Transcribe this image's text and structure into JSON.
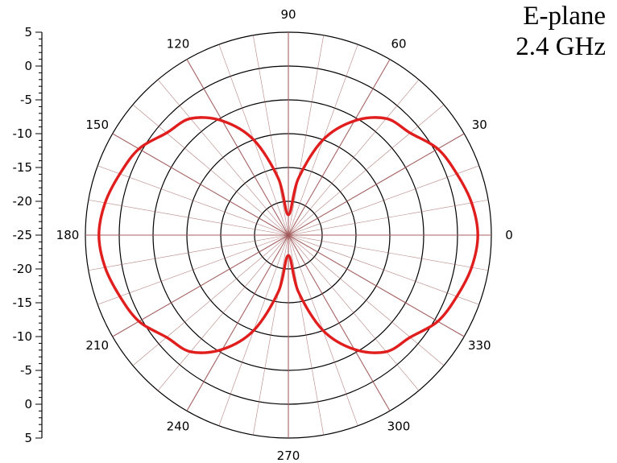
{
  "title": {
    "line1": "E-plane",
    "line2": "2.4 GHz"
  },
  "colors": {
    "pattern": "#e01e1e",
    "spoke": "#a15a5a",
    "ring": "#000000"
  },
  "chart_data": {
    "type": "polar-line",
    "title": "E-plane 2.4 GHz",
    "radial_axis": {
      "range": [
        -25,
        5
      ],
      "ring_values": [
        -25,
        -20,
        -15,
        -10,
        -5,
        0,
        5
      ],
      "tick_labels_top": [
        "5",
        "0",
        "-5",
        "-10",
        "-15",
        "-20",
        "-25"
      ],
      "tick_labels_bottom": [
        "-20",
        "-15",
        "-10",
        "-5",
        "0",
        "5"
      ]
    },
    "angular_axis": {
      "unit": "deg",
      "spoke_step": 10,
      "labels": [
        "0",
        "30",
        "60",
        "90",
        "120",
        "150",
        "180",
        "210",
        "240",
        "270",
        "300",
        "330"
      ]
    },
    "series": [
      {
        "theta": [
          0,
          10,
          20,
          30,
          40,
          50,
          60,
          70,
          80,
          90,
          100,
          110,
          120,
          130,
          140,
          150,
          160,
          170,
          180,
          190,
          200,
          210,
          220,
          230,
          240,
          250,
          260,
          270,
          280,
          290,
          300,
          310,
          320,
          330,
          340,
          350
        ],
        "r": [
          3.0,
          2.5,
          1.5,
          0.5,
          -1.5,
          -2.5,
          -5.5,
          -10.0,
          -16.5,
          -22.0,
          -16.5,
          -10.0,
          -5.5,
          -2.5,
          -1.5,
          0.5,
          1.5,
          2.5,
          3.0,
          2.5,
          1.5,
          0.5,
          -1.5,
          -2.5,
          -5.5,
          -10.0,
          -16.5,
          -22.0,
          -16.5,
          -10.0,
          -5.5,
          -2.5,
          -1.5,
          0.5,
          1.5,
          2.5
        ]
      }
    ]
  }
}
